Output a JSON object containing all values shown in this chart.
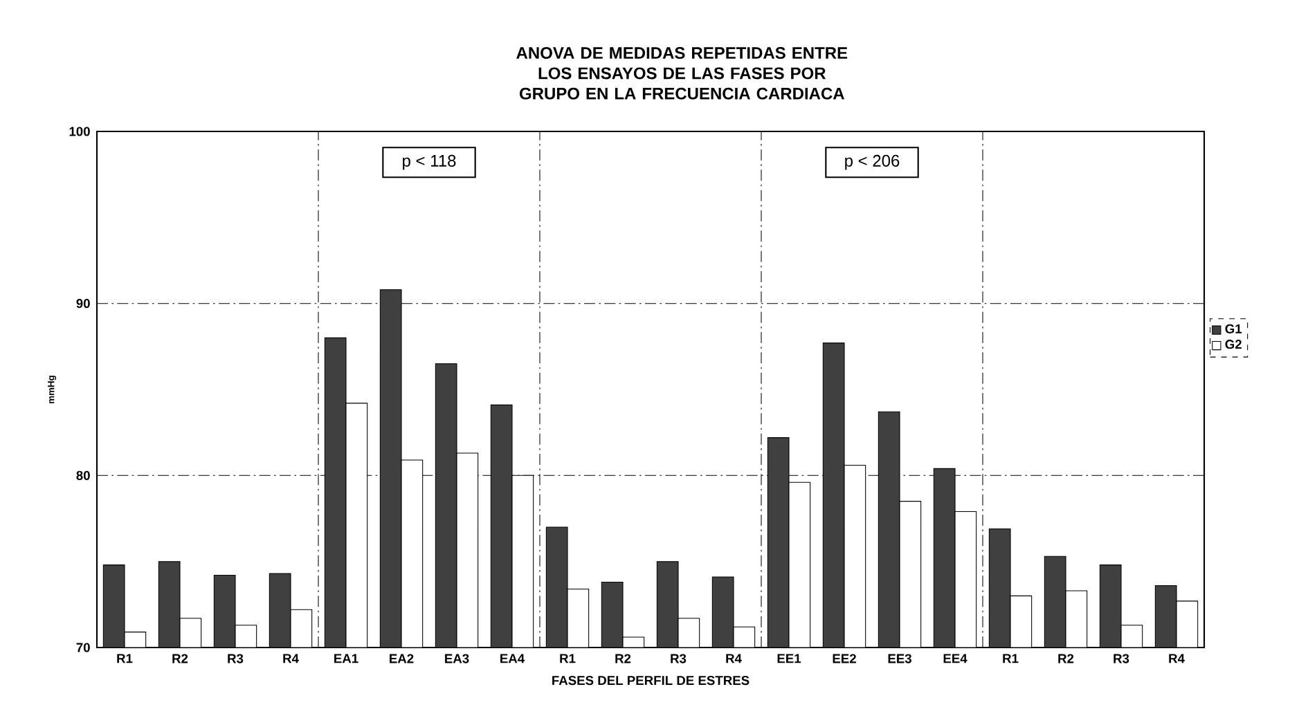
{
  "chart_data": {
    "type": "bar",
    "title": "ANOVA DE MEDIDAS REPETIDAS ENTRE LOS ENSAYOS DE LAS FASES POR GRUPO EN LA FRECUENCIA CARDIACA",
    "xlabel": "FASES DEL PERFIL DE ESTRES",
    "ylabel": "mmHg",
    "categories": [
      "R1",
      "R2",
      "R3",
      "R4",
      "EA1",
      "EA2",
      "EA3",
      "EA4",
      "R1",
      "R2",
      "R3",
      "R4",
      "EE1",
      "EE2",
      "EE3",
      "EE4",
      "R1",
      "R2",
      "R3",
      "R4"
    ],
    "series": [
      {
        "name": "G1",
        "color": "#404040",
        "values": [
          74.8,
          75.0,
          74.2,
          74.3,
          88.0,
          90.8,
          86.5,
          84.1,
          77.0,
          73.8,
          75.0,
          74.1,
          82.2,
          87.7,
          83.7,
          80.4,
          76.9,
          75.3,
          74.8,
          73.6
        ]
      },
      {
        "name": "G2",
        "color": "#ffffff",
        "values": [
          70.9,
          71.7,
          71.3,
          72.2,
          84.2,
          80.9,
          81.3,
          80.0,
          73.4,
          70.6,
          71.7,
          71.2,
          79.6,
          80.6,
          78.5,
          77.9,
          73.0,
          73.3,
          71.3,
          72.7
        ]
      }
    ],
    "annotations": [
      "p <  118",
      "p <  206"
    ],
    "ylim": [
      70,
      100
    ],
    "yticks": [
      70,
      80,
      90,
      100
    ],
    "grid": true,
    "legend": "right"
  }
}
